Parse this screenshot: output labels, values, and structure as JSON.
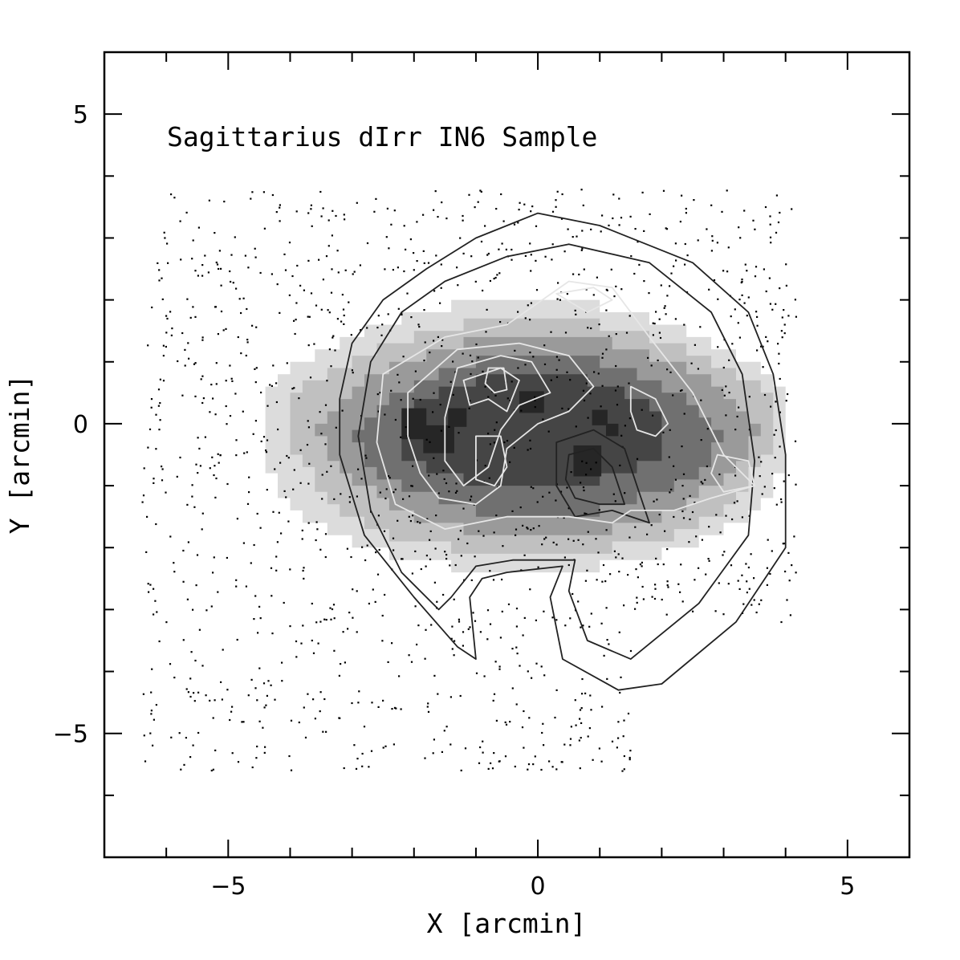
{
  "chart_data": {
    "type": "scatter",
    "title": "Sagittarius dIrr IN6 Sample",
    "xlabel": "X [arcmin]",
    "ylabel": "Y [arcmin]",
    "xlim": [
      -7,
      6
    ],
    "ylim": [
      -7,
      6
    ],
    "x_major_ticks": [
      -5,
      0,
      5
    ],
    "y_major_ticks": [
      -5,
      0,
      5
    ],
    "minor_tick_step": 1,
    "grid": false,
    "legend": "none",
    "scatter_region": {
      "x_range": [
        -6.4,
        4.2
      ],
      "y_range": [
        -5.6,
        3.8
      ],
      "approx_count": 1500
    },
    "density_map": {
      "levels": [
        {
          "color": "#dcdcdc",
          "center": [
            -0.2,
            -0.2
          ],
          "radii": [
            4.3,
            2.2
          ]
        },
        {
          "color": "#c0c0c0",
          "center": [
            -0.1,
            -0.2
          ],
          "radii": [
            3.9,
            1.9
          ]
        },
        {
          "color": "#9a9a9a",
          "center": [
            0.0,
            -0.2
          ],
          "radii": [
            3.4,
            1.6
          ]
        },
        {
          "color": "#707070",
          "center": [
            0.0,
            -0.2
          ],
          "radii": [
            2.8,
            1.3
          ]
        },
        {
          "color": "#454545",
          "center": [
            -0.1,
            -0.1
          ],
          "radii": [
            2.2,
            0.9
          ]
        }
      ],
      "peaks": [
        {
          "x": -2.0,
          "y": 0.0,
          "w": 0.4,
          "h": 0.5
        },
        {
          "x": -1.6,
          "y": -0.25,
          "w": 0.5,
          "h": 0.45
        },
        {
          "x": -1.3,
          "y": 0.1,
          "w": 0.3,
          "h": 0.3
        },
        {
          "x": -0.1,
          "y": 0.35,
          "w": 0.4,
          "h": 0.35
        },
        {
          "x": 0.8,
          "y": -0.6,
          "w": 0.45,
          "h": 0.5
        },
        {
          "x": 1.0,
          "y": 0.1,
          "w": 0.25,
          "h": 0.25
        },
        {
          "x": 1.2,
          "y": -0.1,
          "w": 0.2,
          "h": 0.2
        }
      ]
    },
    "contours": [
      {
        "color": "#222222",
        "points": [
          [
            -1.8,
            2.5
          ],
          [
            -1.0,
            3.0
          ],
          [
            0.0,
            3.4
          ],
          [
            1.0,
            3.2
          ],
          [
            2.5,
            2.6
          ],
          [
            3.4,
            1.8
          ],
          [
            3.8,
            0.8
          ],
          [
            4.0,
            -0.5
          ],
          [
            4.0,
            -2.0
          ],
          [
            3.2,
            -3.2
          ],
          [
            2.0,
            -4.2
          ],
          [
            1.3,
            -4.3
          ],
          [
            0.4,
            -3.8
          ],
          [
            0.2,
            -2.8
          ],
          [
            0.4,
            -2.3
          ],
          [
            -0.5,
            -2.4
          ],
          [
            -0.9,
            -2.5
          ],
          [
            -1.1,
            -2.8
          ],
          [
            -1.0,
            -3.8
          ],
          [
            -1.3,
            -3.6
          ],
          [
            -2.0,
            -2.8
          ],
          [
            -2.8,
            -1.8
          ],
          [
            -3.2,
            -0.5
          ],
          [
            -3.2,
            0.4
          ],
          [
            -3.0,
            1.3
          ],
          [
            -2.5,
            2.0
          ]
        ]
      },
      {
        "color": "#222222",
        "points": [
          [
            -1.5,
            2.3
          ],
          [
            -0.5,
            2.7
          ],
          [
            0.5,
            2.9
          ],
          [
            1.8,
            2.6
          ],
          [
            2.8,
            1.8
          ],
          [
            3.3,
            0.8
          ],
          [
            3.5,
            -0.6
          ],
          [
            3.4,
            -1.8
          ],
          [
            2.6,
            -2.9
          ],
          [
            1.5,
            -3.8
          ],
          [
            0.8,
            -3.5
          ],
          [
            0.5,
            -2.7
          ],
          [
            0.6,
            -2.2
          ],
          [
            -0.4,
            -2.2
          ],
          [
            -1.0,
            -2.3
          ],
          [
            -1.4,
            -2.8
          ],
          [
            -1.6,
            -3.0
          ],
          [
            -2.2,
            -2.4
          ],
          [
            -2.7,
            -1.4
          ],
          [
            -2.9,
            -0.2
          ],
          [
            -2.7,
            1.0
          ],
          [
            -2.2,
            1.8
          ]
        ]
      },
      {
        "color": "#222222",
        "points": [
          [
            0.3,
            -0.3
          ],
          [
            0.9,
            -0.1
          ],
          [
            1.4,
            -0.4
          ],
          [
            1.6,
            -1.0
          ],
          [
            1.8,
            -1.6
          ],
          [
            1.2,
            -1.4
          ],
          [
            0.6,
            -1.5
          ],
          [
            0.3,
            -1.0
          ]
        ]
      },
      {
        "color": "#222222",
        "points": [
          [
            0.5,
            -0.5
          ],
          [
            0.9,
            -0.4
          ],
          [
            1.2,
            -0.7
          ],
          [
            1.4,
            -1.3
          ],
          [
            1.0,
            -1.3
          ],
          [
            0.6,
            -1.2
          ],
          [
            0.45,
            -0.9
          ]
        ]
      },
      {
        "color": "#e6e6e6",
        "points": [
          [
            -2.5,
            0.8
          ],
          [
            -1.5,
            1.4
          ],
          [
            -0.5,
            1.6
          ],
          [
            0.5,
            2.3
          ],
          [
            1.2,
            2.2
          ],
          [
            1.8,
            1.4
          ],
          [
            2.5,
            0.5
          ],
          [
            3.0,
            -0.5
          ],
          [
            3.5,
            -1.0
          ],
          [
            2.8,
            -1.2
          ],
          [
            2.2,
            -1.4
          ],
          [
            1.5,
            -1.4
          ],
          [
            1.2,
            -1.6
          ],
          [
            0.5,
            -1.5
          ],
          [
            -0.5,
            -1.5
          ],
          [
            -1.5,
            -1.7
          ],
          [
            -2.3,
            -1.3
          ],
          [
            -2.6,
            -0.3
          ]
        ]
      },
      {
        "color": "#e6e6e6",
        "points": [
          [
            -2.1,
            0.5
          ],
          [
            -1.3,
            1.2
          ],
          [
            -0.3,
            1.3
          ],
          [
            0.5,
            1.1
          ],
          [
            0.9,
            0.6
          ],
          [
            0.5,
            0.2
          ],
          [
            0.0,
            0.0
          ],
          [
            -0.5,
            -0.4
          ],
          [
            -0.6,
            -1.0
          ],
          [
            -1.0,
            -1.3
          ],
          [
            -1.6,
            -1.2
          ],
          [
            -1.9,
            -0.8
          ],
          [
            -2.1,
            -0.2
          ]
        ]
      },
      {
        "color": "#e6e6e6",
        "points": [
          [
            -1.3,
            0.9
          ],
          [
            -0.6,
            1.1
          ],
          [
            -0.1,
            1.0
          ],
          [
            0.2,
            0.5
          ],
          [
            -0.3,
            0.3
          ],
          [
            -0.6,
            -0.1
          ],
          [
            -0.8,
            -0.7
          ],
          [
            -1.2,
            -1.0
          ],
          [
            -1.5,
            -0.6
          ],
          [
            -1.5,
            0.1
          ]
        ]
      },
      {
        "color": "#e6e6e6",
        "points": [
          [
            -1.2,
            0.7
          ],
          [
            -0.6,
            0.9
          ],
          [
            -0.3,
            0.7
          ],
          [
            -0.5,
            0.2
          ],
          [
            -0.8,
            0.4
          ],
          [
            -1.1,
            0.3
          ]
        ]
      },
      {
        "color": "#e6e6e6",
        "points": [
          [
            -0.8,
            0.9
          ],
          [
            -0.55,
            0.9
          ],
          [
            -0.5,
            0.55
          ],
          [
            -0.7,
            0.5
          ],
          [
            -0.85,
            0.65
          ]
        ]
      },
      {
        "color": "#e6e6e6",
        "points": [
          [
            -1.0,
            -0.2
          ],
          [
            -0.6,
            -0.2
          ],
          [
            -0.5,
            -0.7
          ],
          [
            -0.7,
            -1.0
          ],
          [
            -1.0,
            -0.9
          ]
        ]
      },
      {
        "color": "#e6e6e6",
        "points": [
          [
            1.5,
            0.6
          ],
          [
            1.9,
            0.4
          ],
          [
            2.1,
            0.0
          ],
          [
            1.9,
            -0.2
          ],
          [
            1.6,
            -0.1
          ],
          [
            1.5,
            0.2
          ]
        ]
      },
      {
        "color": "#e6e6e6",
        "points": [
          [
            2.9,
            -0.5
          ],
          [
            3.4,
            -0.6
          ],
          [
            3.5,
            -1.0
          ],
          [
            3.0,
            -1.1
          ],
          [
            2.8,
            -0.8
          ]
        ]
      },
      {
        "color": "#e6e6e6",
        "points": [
          [
            0.3,
            2.1
          ],
          [
            0.9,
            2.2
          ],
          [
            1.2,
            2.0
          ],
          [
            0.8,
            1.8
          ]
        ]
      }
    ]
  }
}
